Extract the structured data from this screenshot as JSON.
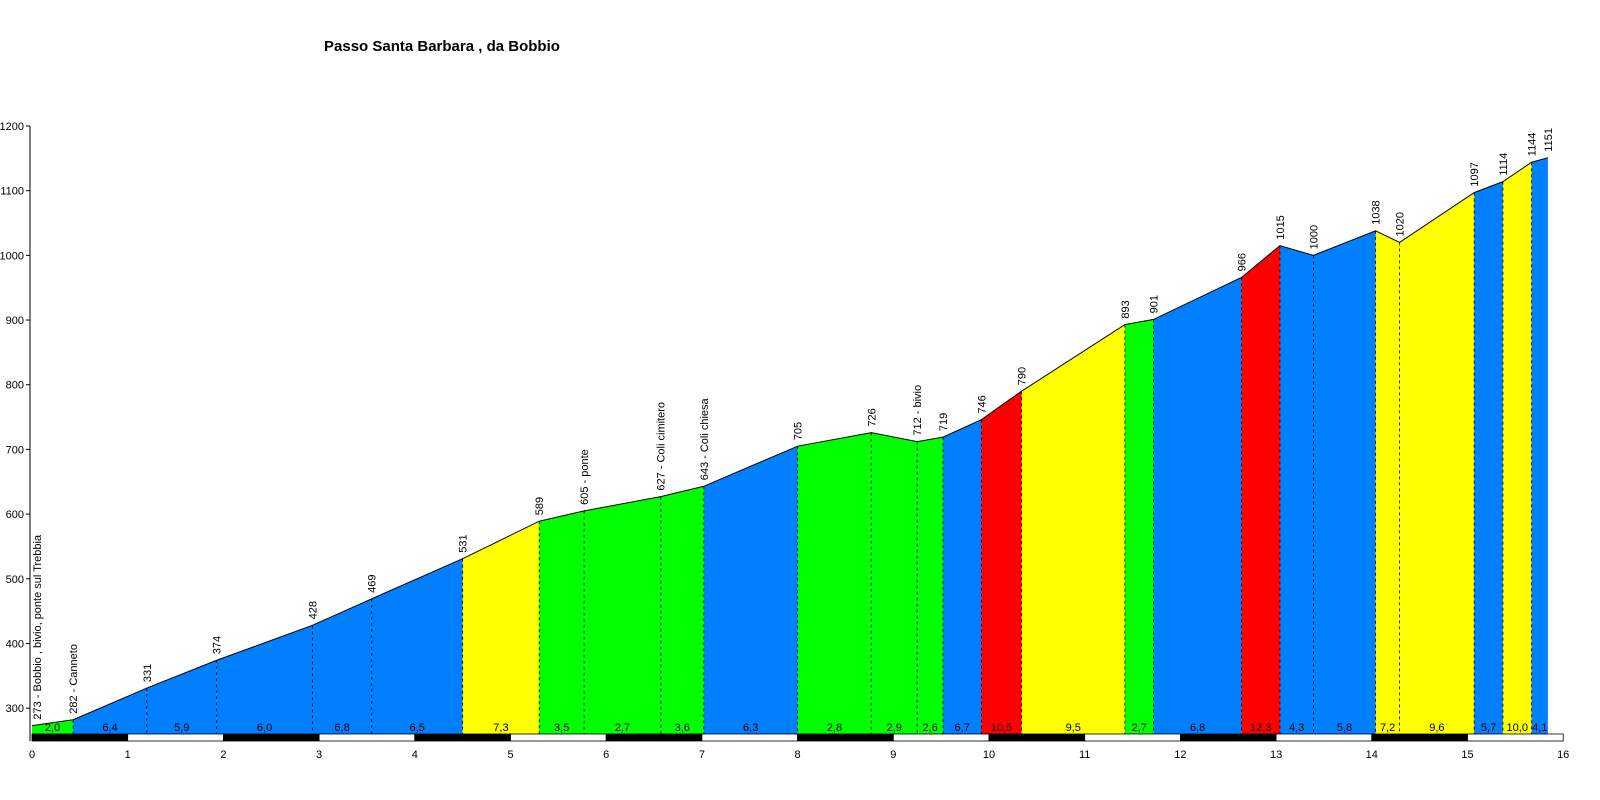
{
  "title": "Passo Santa Barbara , da Bobbio",
  "chart_data": {
    "type": "area",
    "title": "Passo Santa Barbara , da Bobbio",
    "xlabel": "",
    "ylabel": "",
    "xlim": [
      0,
      16
    ],
    "ylim": [
      260,
      1200
    ],
    "x_ticks": [
      "0",
      "1",
      "2",
      "3",
      "4",
      "5",
      "6",
      "7",
      "8",
      "9",
      "10",
      "11",
      "12",
      "13",
      "14",
      "15",
      "16"
    ],
    "y_ticks": [
      "300",
      "400",
      "500",
      "600",
      "700",
      "800",
      "900",
      "1000",
      "1100",
      "1200"
    ],
    "points": [
      {
        "x": 0.0,
        "y": 273,
        "label": "273 - Bobbio , bivio, ponte sul Trebbia"
      },
      {
        "x": 0.43,
        "y": 282,
        "label": "282 - Canneto"
      },
      {
        "x": 1.2,
        "y": 331,
        "label": "331"
      },
      {
        "x": 1.93,
        "y": 374,
        "label": "374"
      },
      {
        "x": 2.93,
        "y": 428,
        "label": "428"
      },
      {
        "x": 3.55,
        "y": 469,
        "label": "469"
      },
      {
        "x": 4.5,
        "y": 531,
        "label": "531"
      },
      {
        "x": 5.3,
        "y": 589,
        "label": "589"
      },
      {
        "x": 5.77,
        "y": 605,
        "label": "605 - ponte"
      },
      {
        "x": 6.57,
        "y": 627,
        "label": "627 - Coli cimitero"
      },
      {
        "x": 7.02,
        "y": 643,
        "label": "643 - Coli chiesa"
      },
      {
        "x": 8.0,
        "y": 705,
        "label": "705"
      },
      {
        "x": 8.77,
        "y": 726,
        "label": "726"
      },
      {
        "x": 9.25,
        "y": 712,
        "label": "712 - bivio"
      },
      {
        "x": 9.52,
        "y": 719,
        "label": "719"
      },
      {
        "x": 9.92,
        "y": 746,
        "label": "746"
      },
      {
        "x": 10.34,
        "y": 790,
        "label": "790"
      },
      {
        "x": 11.42,
        "y": 893,
        "label": "893"
      },
      {
        "x": 11.72,
        "y": 901,
        "label": "901"
      },
      {
        "x": 12.64,
        "y": 966,
        "label": "966"
      },
      {
        "x": 13.04,
        "y": 1015,
        "label": "1015"
      },
      {
        "x": 13.39,
        "y": 1000,
        "label": "1000"
      },
      {
        "x": 14.04,
        "y": 1038,
        "label": "1038"
      },
      {
        "x": 14.29,
        "y": 1020,
        "label": "1020"
      },
      {
        "x": 15.07,
        "y": 1097,
        "label": "1097"
      },
      {
        "x": 15.37,
        "y": 1114,
        "label": "1114"
      },
      {
        "x": 15.67,
        "y": 1144,
        "label": "1144"
      },
      {
        "x": 15.84,
        "y": 1151,
        "label": "1151"
      }
    ],
    "segments": [
      {
        "gradient": "2,0",
        "color": "#00ff00"
      },
      {
        "gradient": "6,4",
        "color": "#0080ff"
      },
      {
        "gradient": "5,9",
        "color": "#0080ff"
      },
      {
        "gradient": "6,0",
        "color": "#0080ff"
      },
      {
        "gradient": "6,8",
        "color": "#0080ff"
      },
      {
        "gradient": "6,5",
        "color": "#0080ff"
      },
      {
        "gradient": "7,3",
        "color": "#ffff00"
      },
      {
        "gradient": "3,5",
        "color": "#00ff00"
      },
      {
        "gradient": "2,7",
        "color": "#00ff00"
      },
      {
        "gradient": "3,6",
        "color": "#00ff00"
      },
      {
        "gradient": "6,3",
        "color": "#0080ff"
      },
      {
        "gradient": "2,8",
        "color": "#00ff00"
      },
      {
        "gradient": "2,9",
        "color": "#00ff00"
      },
      {
        "gradient": "2,6",
        "color": "#00ff00"
      },
      {
        "gradient": "6,7",
        "color": "#0080ff"
      },
      {
        "gradient": "10,5",
        "color": "#ff0000"
      },
      {
        "gradient": "9,5",
        "color": "#ffff00"
      },
      {
        "gradient": "2,7",
        "color": "#00ff00"
      },
      {
        "gradient": "6,8",
        "color": "#0080ff"
      },
      {
        "gradient": "12,3",
        "color": "#ff0000"
      },
      {
        "gradient": "4,3",
        "color": "#0080ff"
      },
      {
        "gradient": "5,8",
        "color": "#0080ff"
      },
      {
        "gradient": "7,2",
        "color": "#ffff00"
      },
      {
        "gradient": "9,6",
        "color": "#ffff00"
      },
      {
        "gradient": "5,7",
        "color": "#0080ff"
      },
      {
        "gradient": "10,0",
        "color": "#ffff00"
      },
      {
        "gradient": "4,1",
        "color": "#0080ff"
      }
    ],
    "grid": false,
    "legend": "none"
  }
}
